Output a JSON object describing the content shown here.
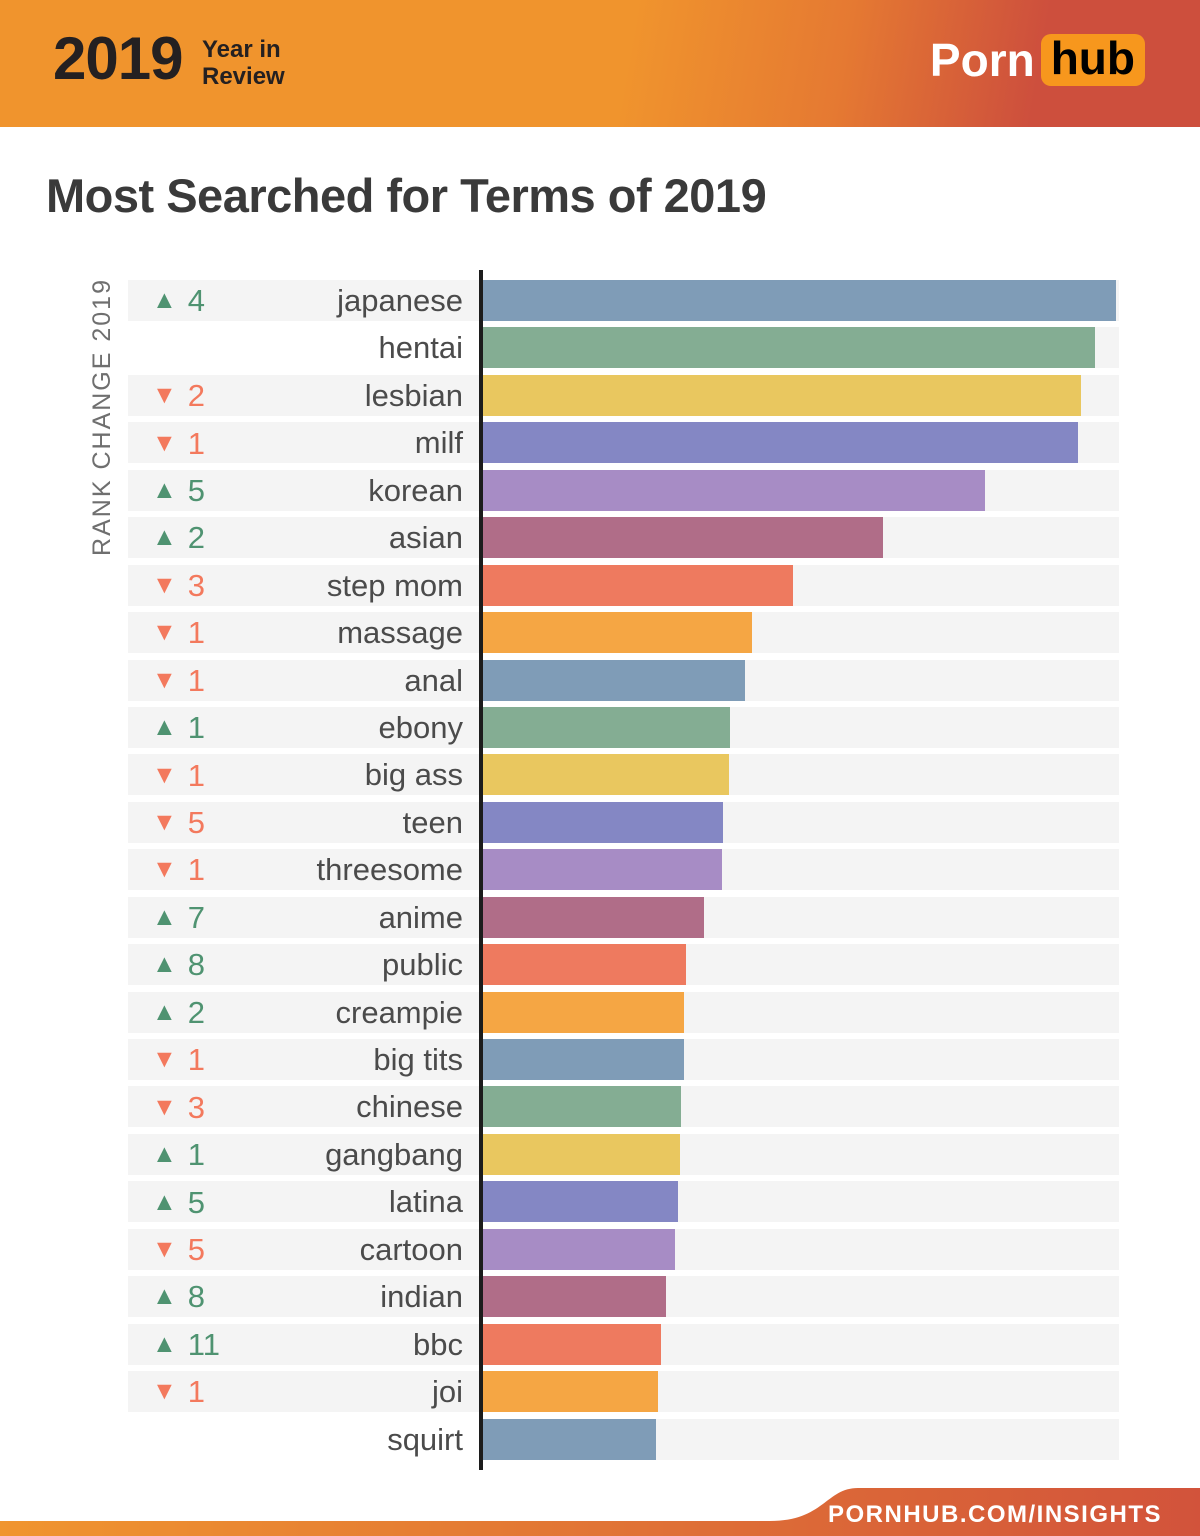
{
  "header": {
    "year": "2019",
    "subtitle_line1": "Year in",
    "subtitle_line2": "Review",
    "logo_part1": "Porn",
    "logo_part2": "hub"
  },
  "title": "Most Searched for Terms of 2019",
  "icons": {
    "rank_up": "▲",
    "rank_down": "▼"
  },
  "colors": {
    "header_gradient_left": "#f0942d",
    "header_gradient_right": "#cd4f3d",
    "logo_hub_badge": "#f7971d",
    "rank_up": "#4f9371",
    "rank_down": "#f3795d",
    "row_stripe": "#f4f4f4",
    "axis_line": "#1c1c1c",
    "footer_gradient_left": "#f0952f",
    "footer_gradient_right": "#d2533b"
  },
  "chart_data": {
    "type": "bar",
    "orientation": "horizontal",
    "axis_label": "RANK CHANGE 2019",
    "value_unit": "relative-search-volume-percent-of-top-term",
    "xlim": [
      0,
      100
    ],
    "grid": false,
    "palette": {
      "blue": "#7f9cb7",
      "green": "#84ad93",
      "yellow": "#e9c75f",
      "indigo": "#8487c4",
      "purple": "#a78cc5",
      "maroon": "#b06d88",
      "salmon": "#ee7a5f",
      "orange": "#f5a644"
    },
    "rows": [
      {
        "term": "japanese",
        "rank_change": 4,
        "direction": "up",
        "value": 100.0,
        "color": "blue"
      },
      {
        "term": "hentai",
        "rank_change": null,
        "direction": "none",
        "value": 96.7,
        "color": "green"
      },
      {
        "term": "lesbian",
        "rank_change": 2,
        "direction": "down",
        "value": 94.5,
        "color": "yellow"
      },
      {
        "term": "milf",
        "rank_change": 1,
        "direction": "down",
        "value": 94.0,
        "color": "indigo"
      },
      {
        "term": "korean",
        "rank_change": 5,
        "direction": "up",
        "value": 79.3,
        "color": "purple"
      },
      {
        "term": "asian",
        "rank_change": 2,
        "direction": "up",
        "value": 63.2,
        "color": "maroon"
      },
      {
        "term": "step mom",
        "rank_change": 3,
        "direction": "down",
        "value": 49.0,
        "color": "salmon"
      },
      {
        "term": "massage",
        "rank_change": 1,
        "direction": "down",
        "value": 42.5,
        "color": "orange"
      },
      {
        "term": "anal",
        "rank_change": 1,
        "direction": "down",
        "value": 41.4,
        "color": "blue"
      },
      {
        "term": "ebony",
        "rank_change": 1,
        "direction": "up",
        "value": 39.0,
        "color": "green"
      },
      {
        "term": "big ass",
        "rank_change": 1,
        "direction": "down",
        "value": 38.9,
        "color": "yellow"
      },
      {
        "term": "teen",
        "rank_change": 5,
        "direction": "down",
        "value": 37.9,
        "color": "indigo"
      },
      {
        "term": "threesome",
        "rank_change": 1,
        "direction": "down",
        "value": 37.8,
        "color": "purple"
      },
      {
        "term": "anime",
        "rank_change": 7,
        "direction": "up",
        "value": 34.9,
        "color": "maroon"
      },
      {
        "term": "public",
        "rank_change": 8,
        "direction": "up",
        "value": 32.1,
        "color": "salmon"
      },
      {
        "term": "creampie",
        "rank_change": 2,
        "direction": "up",
        "value": 31.8,
        "color": "orange"
      },
      {
        "term": "big tits",
        "rank_change": 1,
        "direction": "down",
        "value": 31.8,
        "color": "blue"
      },
      {
        "term": "chinese",
        "rank_change": 3,
        "direction": "down",
        "value": 31.3,
        "color": "green"
      },
      {
        "term": "gangbang",
        "rank_change": 1,
        "direction": "up",
        "value": 31.1,
        "color": "yellow"
      },
      {
        "term": "latina",
        "rank_change": 5,
        "direction": "up",
        "value": 30.8,
        "color": "indigo"
      },
      {
        "term": "cartoon",
        "rank_change": 5,
        "direction": "down",
        "value": 30.3,
        "color": "purple"
      },
      {
        "term": "indian",
        "rank_change": 8,
        "direction": "up",
        "value": 28.9,
        "color": "maroon"
      },
      {
        "term": "bbc",
        "rank_change": 11,
        "direction": "up",
        "value": 28.1,
        "color": "salmon"
      },
      {
        "term": "joi",
        "rank_change": 1,
        "direction": "down",
        "value": 27.6,
        "color": "orange"
      },
      {
        "term": "squirt",
        "rank_change": null,
        "direction": "none",
        "value": 27.3,
        "color": "blue"
      }
    ]
  },
  "footer": {
    "url": "PORNHUB.COM/INSIGHTS"
  }
}
